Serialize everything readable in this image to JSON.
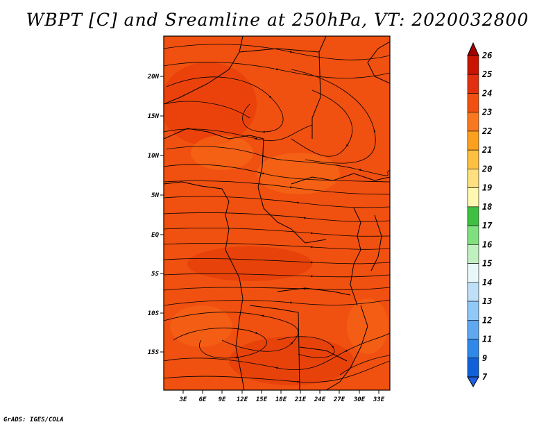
{
  "title": "WBPT [C] and Sreamline at 250hPa, VT: 2020032800",
  "credit": "GrADS: IGES/COLA",
  "map": {
    "lat_labels": [
      "20N",
      "15N",
      "10N",
      "5N",
      "EQ",
      "5S",
      "10S",
      "15S"
    ],
    "lon_labels": [
      "3E",
      "6E",
      "9E",
      "12E",
      "15E",
      "18E",
      "21E",
      "24E",
      "27E",
      "30E",
      "33E"
    ],
    "field_colors": {
      "main": "#f05010",
      "dark": "#e03a08",
      "light": "#f7701a"
    }
  },
  "colorbar": {
    "labels": [
      "26",
      "25",
      "24",
      "23",
      "22",
      "21",
      "20",
      "19",
      "18",
      "17",
      "16",
      "15",
      "14",
      "13",
      "12",
      "11",
      "9",
      "7"
    ],
    "colors": [
      "#a00000",
      "#c81400",
      "#e03010",
      "#f05010",
      "#f87820",
      "#fca020",
      "#fdc040",
      "#fee080",
      "#fff8b0",
      "#40c040",
      "#80e080",
      "#c0f0c0",
      "#e8f8f8",
      "#c0e0f8",
      "#90c8f8",
      "#60a8f0",
      "#3088e8",
      "#1060d8",
      "#2060e0"
    ]
  }
}
